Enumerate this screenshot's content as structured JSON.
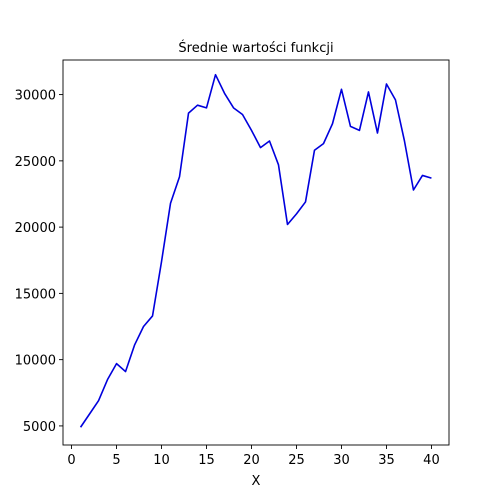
{
  "chart_data": {
    "type": "line",
    "title": "Średnie wartości funkcji",
    "xlabel": "X",
    "ylabel": "",
    "xlim": [
      -0.95,
      41.95
    ],
    "ylim": [
      3560,
      32610
    ],
    "xticks": [
      0,
      5,
      10,
      15,
      20,
      25,
      30,
      35,
      40
    ],
    "yticks": [
      5000,
      10000,
      15000,
      20000,
      25000,
      30000
    ],
    "grid": false,
    "legend": "none",
    "series": [
      {
        "color": "#0000dd",
        "x": [
          1,
          2,
          3,
          4,
          5,
          6,
          7,
          8,
          9,
          10,
          11,
          12,
          13,
          14,
          15,
          16,
          17,
          18,
          19,
          20,
          21,
          22,
          23,
          24,
          25,
          26,
          27,
          28,
          29,
          30,
          31,
          32,
          33,
          34,
          35,
          36,
          37,
          38,
          39,
          40
        ],
        "values": [
          4900,
          5900,
          6900,
          8500,
          9700,
          9100,
          11100,
          12500,
          13300,
          17400,
          21800,
          23800,
          28600,
          29200,
          29000,
          31500,
          30100,
          29000,
          28500,
          27300,
          26000,
          26500,
          24700,
          20200,
          21000,
          21900,
          25800,
          26300,
          27800,
          30400,
          27600,
          27300,
          30200,
          27100,
          30800,
          29600,
          26500,
          22800,
          23900,
          23700
        ]
      }
    ]
  }
}
